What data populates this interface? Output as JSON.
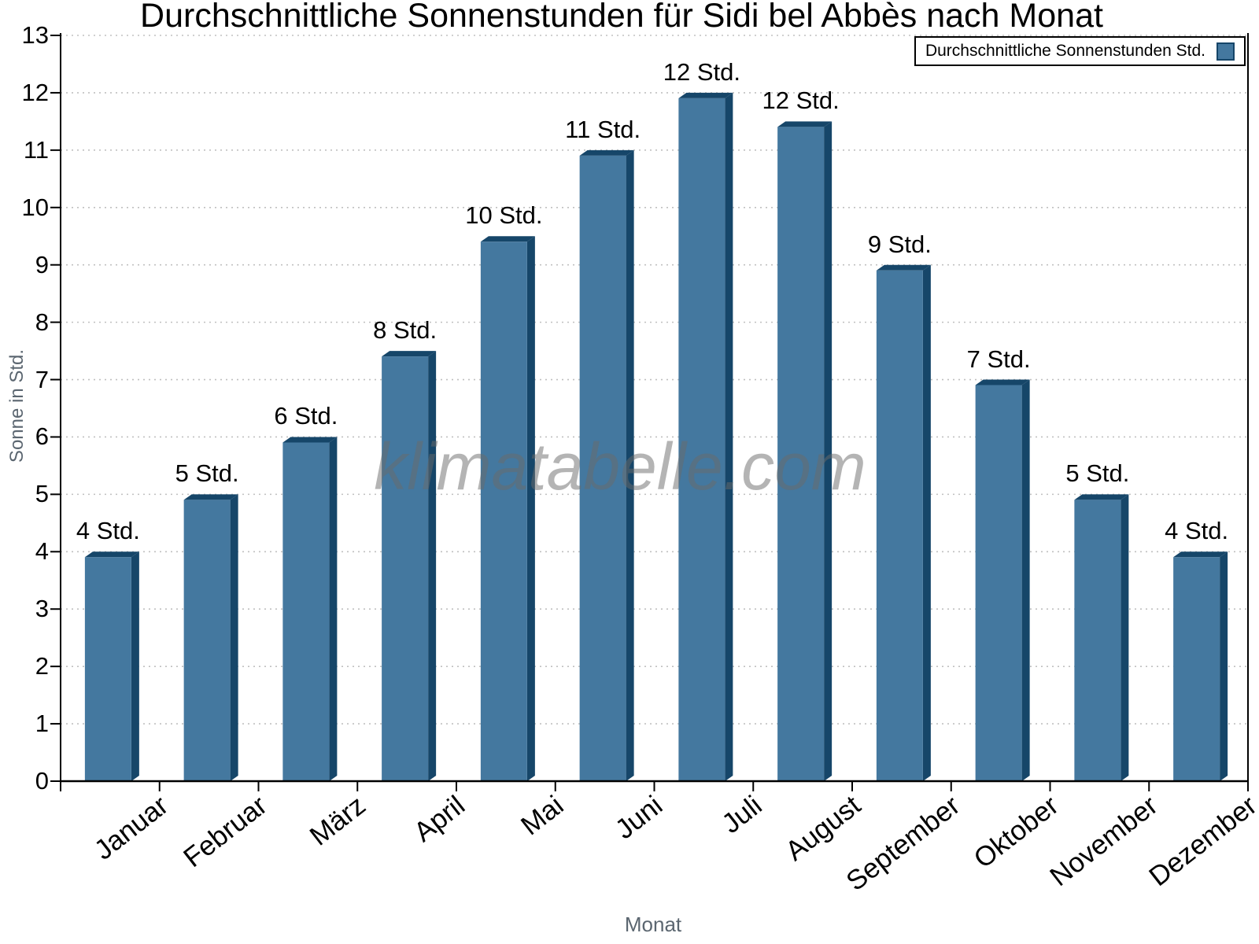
{
  "watermark": "klimatabelle.com",
  "chart_data": {
    "type": "bar",
    "title": "Durchschnittliche Sonnenstunden für Sidi bel Abbès nach Monat",
    "xlabel": "Monat",
    "ylabel": "Sonne in Std.",
    "categories": [
      "Januar",
      "Februar",
      "März",
      "April",
      "Mai",
      "Juni",
      "Juli",
      "August",
      "September",
      "Oktober",
      "November",
      "Dezember"
    ],
    "values": [
      4,
      5,
      6,
      7.5,
      9.5,
      11,
      12,
      11.5,
      9,
      7,
      5,
      4
    ],
    "value_labels": [
      "4 Std.",
      "5 Std.",
      "6 Std.",
      "8 Std.",
      "10 Std.",
      "11 Std.",
      "12 Std.",
      "12 Std.",
      "9 Std.",
      "7 Std.",
      "5 Std.",
      "4 Std."
    ],
    "ylim": [
      0,
      13
    ],
    "ytick_interval": 1,
    "grid": "horizontal dotted",
    "bar_style": "3d-depth",
    "legend": {
      "label": "Durchschnittliche Sonnenstunden Std.",
      "position": "top-right"
    },
    "colors": {
      "bar_face": "#44789F",
      "bar_side": "#164669",
      "grid": "#c0c0c0",
      "axis": "#000000",
      "axis_title_text": "#5b6670",
      "tick_text": "#000000",
      "watermark_text": "#9b9b9b"
    }
  }
}
